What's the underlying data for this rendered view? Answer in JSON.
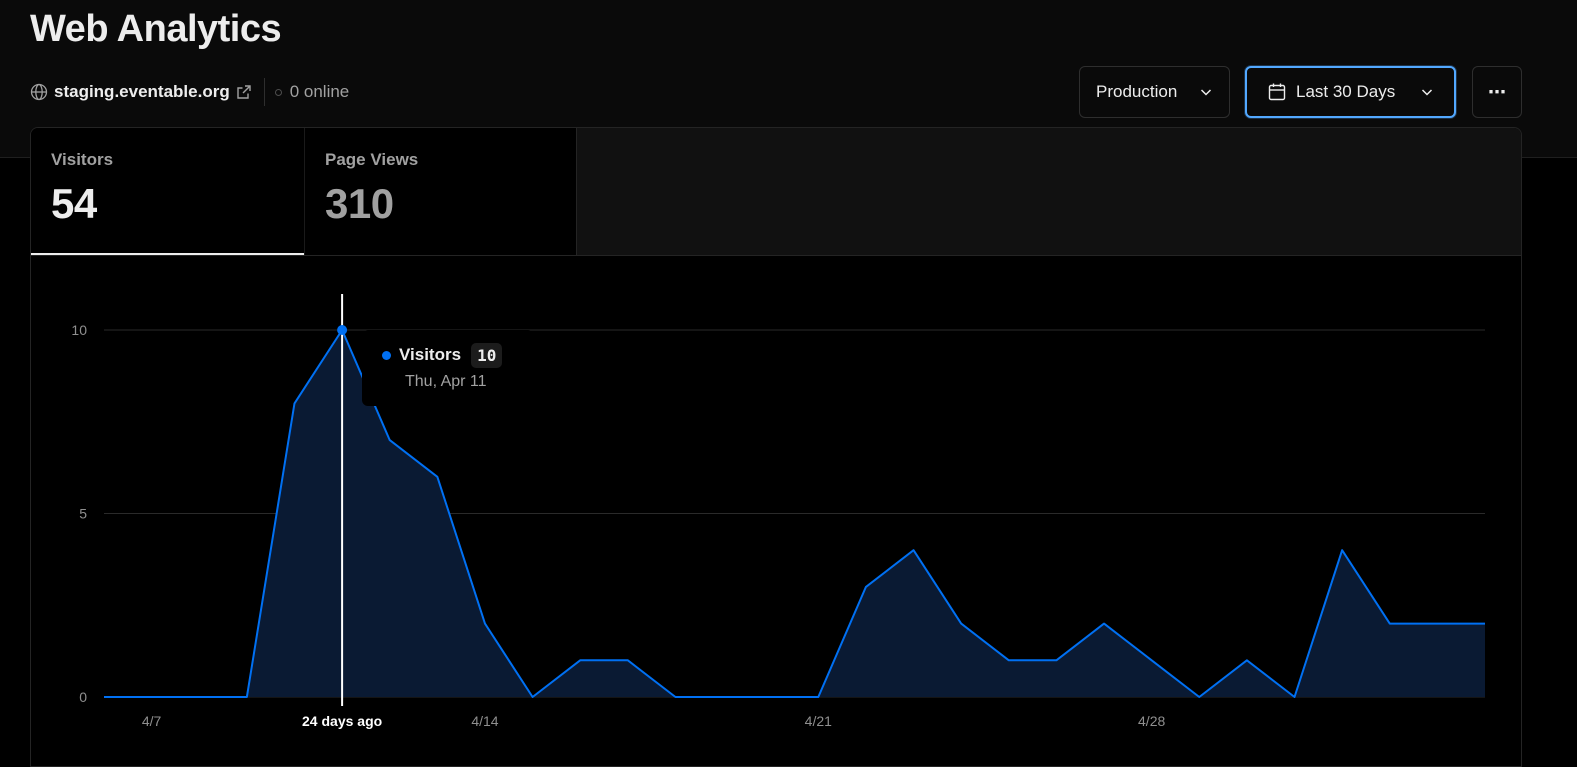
{
  "header": {
    "title": "Web Analytics",
    "domain": "staging.eventable.org",
    "online": "0 online"
  },
  "controls": {
    "environment": "Production",
    "range": "Last 30 Days",
    "more": "⋯"
  },
  "tabs": [
    {
      "label": "Visitors",
      "value": "54",
      "active": true
    },
    {
      "label": "Page Views",
      "value": "310",
      "active": false
    }
  ],
  "colors": {
    "accent": "#0070f3",
    "focus_ring": "#52a8ff",
    "area_fill": "#0a1a33"
  },
  "tooltip": {
    "series": "Visitors",
    "value": "10",
    "date": "Thu, Apr 11"
  },
  "chart_data": {
    "type": "area",
    "x": [
      "4/6",
      "4/7",
      "4/8",
      "4/9",
      "4/10",
      "4/11",
      "4/12",
      "4/13",
      "4/14",
      "4/15",
      "4/16",
      "4/17",
      "4/18",
      "4/19",
      "4/20",
      "4/21",
      "4/22",
      "4/23",
      "4/24",
      "4/25",
      "4/26",
      "4/27",
      "4/28",
      "4/29",
      "4/30",
      "5/1",
      "5/2",
      "5/3",
      "5/4",
      "5/5"
    ],
    "series": [
      {
        "name": "Visitors",
        "values": [
          0,
          0,
          0,
          0,
          8,
          10,
          7,
          6,
          2,
          0,
          1,
          1,
          0,
          0,
          0,
          0,
          3,
          4,
          2,
          1,
          1,
          2,
          1,
          0,
          1,
          0,
          4,
          2,
          2,
          2
        ]
      }
    ],
    "x_ticks": [
      "4/7",
      "24 days ago",
      "4/14",
      "4/21",
      "4/28"
    ],
    "x_tick_indices": [
      1,
      5,
      8,
      15,
      22
    ],
    "highlight_index": 5,
    "y_ticks": [
      0,
      5,
      10
    ],
    "ylim": [
      0,
      10
    ],
    "grid": true
  }
}
